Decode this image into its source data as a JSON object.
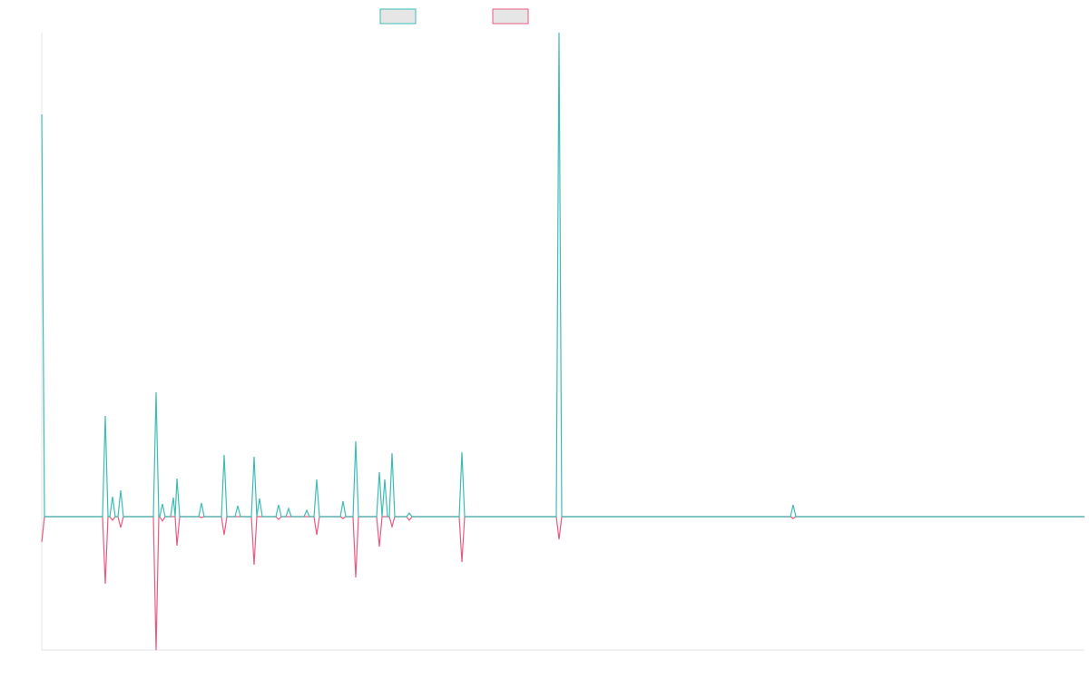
{
  "chart_data": {
    "type": "line",
    "legend": "top",
    "x": [
      0,
      3,
      67,
      70,
      73,
      75,
      78,
      81,
      84,
      87,
      90,
      123,
      126,
      129,
      130,
      133,
      136,
      142,
      145,
      147,
      149,
      152,
      173,
      176,
      179,
      198,
      201,
      204,
      213,
      216,
      219,
      231,
      234,
      237,
      240,
      243,
      258,
      261,
      264,
      269,
      272,
      275,
      289,
      292,
      295,
      300,
      303,
      306,
      329,
      332,
      335,
      343,
      346,
      349,
      369,
      372,
      375,
      378,
      381,
      383,
      386,
      389,
      402,
      405,
      408,
      460,
      463,
      466,
      567,
      570,
      573,
      825,
      828,
      831,
      1149
    ],
    "xlim": [
      0,
      1149
    ],
    "ylim": [
      -147,
      533
    ],
    "series": [
      {
        "color": "#ea5a80",
        "values": [
          -28,
          0,
          0,
          -74,
          0,
          0,
          -4,
          0,
          0,
          -12,
          0,
          0,
          -147,
          0,
          0,
          -5,
          0,
          0,
          0,
          0,
          -32,
          0,
          0,
          -1,
          0,
          0,
          -20,
          0,
          0,
          0,
          0,
          0,
          -53,
          0,
          0,
          0,
          0,
          -3,
          0,
          0,
          0,
          0,
          0,
          0,
          0,
          0,
          -20,
          0,
          0,
          -2,
          0,
          0,
          -67,
          0,
          0,
          -33,
          0,
          0,
          0,
          0,
          -11,
          0,
          0,
          -4,
          0,
          0,
          -50,
          0,
          0,
          -25,
          0,
          0,
          -2,
          0,
          0
        ]
      },
      {
        "color": "#3dbcb4",
        "values": [
          443,
          0,
          0,
          111,
          0,
          0,
          22,
          0,
          0,
          29,
          0,
          0,
          137,
          0,
          0,
          14,
          0,
          0,
          21,
          0,
          42,
          0,
          0,
          15,
          0,
          0,
          68,
          0,
          0,
          12,
          0,
          0,
          66,
          0,
          20,
          0,
          0,
          13,
          0,
          0,
          9,
          0,
          0,
          7,
          0,
          0,
          41,
          0,
          0,
          17,
          0,
          0,
          83,
          0,
          0,
          49,
          0,
          41,
          0,
          0,
          70,
          0,
          0,
          4,
          0,
          0,
          71,
          0,
          0,
          533,
          0,
          0,
          13,
          0,
          0
        ]
      }
    ]
  }
}
